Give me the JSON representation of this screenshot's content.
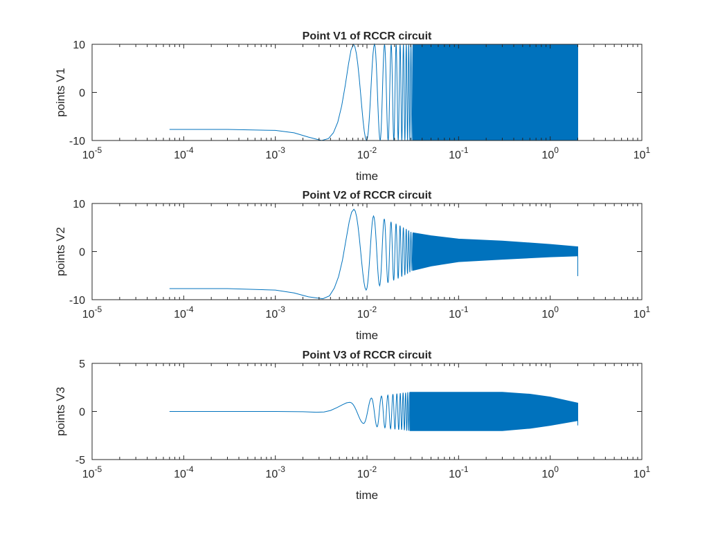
{
  "colors": {
    "series": "#0072BD",
    "axis": "#262626",
    "background": "#ffffff"
  },
  "chart_data": [
    {
      "type": "line",
      "title": "Point V1 of RCCR circuit",
      "xlabel": "time",
      "ylabel": "points V1",
      "xscale": "log",
      "xlim": [
        1e-05,
        10
      ],
      "ylim": [
        -10,
        10
      ],
      "xticks": [
        {
          "base": "10",
          "exp": "-5"
        },
        {
          "base": "10",
          "exp": "-4"
        },
        {
          "base": "10",
          "exp": "-3"
        },
        {
          "base": "10",
          "exp": "-2"
        },
        {
          "base": "10",
          "exp": "-1"
        },
        {
          "base": "10",
          "exp": "0"
        },
        {
          "base": "10",
          "exp": "1"
        }
      ],
      "yticks": [
        "-10",
        "0",
        "10"
      ],
      "yticks_values": [
        -10,
        0,
        10
      ],
      "grid": false,
      "lead": [
        [
          7e-05,
          -7.7
        ],
        [
          0.0003,
          -7.7
        ],
        [
          0.001,
          -7.9
        ],
        [
          0.0016,
          -8.4
        ],
        [
          0.0023,
          -9.3
        ],
        [
          0.0032,
          -10
        ],
        [
          0.0038,
          -9.6
        ],
        [
          0.0043,
          -8.4
        ],
        [
          0.0048,
          -6.2
        ],
        [
          0.0053,
          -2.8
        ],
        [
          0.0058,
          1.5
        ],
        [
          0.0063,
          6
        ],
        [
          0.0067,
          8.8
        ],
        [
          0.0071,
          10
        ]
      ],
      "extrema_x": [
        0.00991,
        0.01209,
        0.01393,
        0.01556,
        0.01703,
        0.01838,
        0.01964,
        0.02082,
        0.02194,
        0.02301,
        0.02402,
        0.025,
        0.02594,
        0.02685,
        0.02773,
        0.02858,
        0.0294,
        0.03021,
        0.03099,
        0.03175
      ],
      "extrema_y": [
        -10,
        10,
        -10,
        10,
        -10,
        10,
        -10,
        10,
        -10,
        10,
        -10,
        10,
        -10,
        10,
        -10,
        10,
        -10,
        10,
        -10,
        10
      ],
      "envelope": [
        [
          0.0318,
          10,
          -10
        ],
        [
          2,
          10,
          -10
        ]
      ],
      "end_value": null
    },
    {
      "type": "line",
      "title": "Point V2 of RCCR circuit",
      "xlabel": "time",
      "ylabel": "points V2",
      "xscale": "log",
      "xlim": [
        1e-05,
        10
      ],
      "ylim": [
        -10,
        10
      ],
      "xticks": [
        {
          "base": "10",
          "exp": "-5"
        },
        {
          "base": "10",
          "exp": "-4"
        },
        {
          "base": "10",
          "exp": "-3"
        },
        {
          "base": "10",
          "exp": "-2"
        },
        {
          "base": "10",
          "exp": "-1"
        },
        {
          "base": "10",
          "exp": "0"
        },
        {
          "base": "10",
          "exp": "1"
        }
      ],
      "yticks": [
        "-10",
        "0",
        "10"
      ],
      "yticks_values": [
        -10,
        0,
        10
      ],
      "grid": false,
      "lead": [
        [
          7e-05,
          -7.7
        ],
        [
          0.0003,
          -7.7
        ],
        [
          0.001,
          -8.0
        ],
        [
          0.0016,
          -8.6
        ],
        [
          0.0023,
          -9.4
        ],
        [
          0.0033,
          -9.8
        ],
        [
          0.0039,
          -9.2
        ],
        [
          0.0044,
          -7.6
        ],
        [
          0.0049,
          -5.2
        ],
        [
          0.0054,
          -1.8
        ],
        [
          0.0059,
          2.4
        ],
        [
          0.0064,
          6.2
        ],
        [
          0.0068,
          8.2
        ],
        [
          0.0072,
          8.8
        ]
      ],
      "extrema_x": [
        0.0098,
        0.0118,
        0.01375,
        0.01545,
        0.01695,
        0.0183,
        0.01958,
        0.02077,
        0.0219,
        0.02297,
        0.02399,
        0.02497,
        0.02591,
        0.02682,
        0.0277,
        0.02855,
        0.02938,
        0.03019,
        0.03097,
        0.03173
      ],
      "extrema_y": [
        -8,
        7.4,
        -7.1,
        6.8,
        -6.5,
        6.2,
        -6.0,
        5.8,
        -5.6,
        5.4,
        -5.2,
        5.0,
        -4.9,
        4.7,
        -4.6,
        4.4,
        -4.3,
        4.1,
        -4.0,
        3.9
      ],
      "envelope": [
        [
          0.0318,
          3.9,
          -3.9
        ],
        [
          0.05,
          3.3,
          -3.0
        ],
        [
          0.1,
          2.6,
          -2.1
        ],
        [
          0.3,
          2.2,
          -1.6
        ],
        [
          1,
          1.5,
          -1.1
        ],
        [
          2,
          1.0,
          -0.9
        ]
      ],
      "end_value": -5.1
    },
    {
      "type": "line",
      "title": "Point V3 of RCCR circuit",
      "xlabel": "time",
      "ylabel": "points V3",
      "xscale": "log",
      "xlim": [
        1e-05,
        10
      ],
      "ylim": [
        -5,
        5
      ],
      "xticks": [
        {
          "base": "10",
          "exp": "-5"
        },
        {
          "base": "10",
          "exp": "-4"
        },
        {
          "base": "10",
          "exp": "-3"
        },
        {
          "base": "10",
          "exp": "-2"
        },
        {
          "base": "10",
          "exp": "-1"
        },
        {
          "base": "10",
          "exp": "0"
        },
        {
          "base": "10",
          "exp": "1"
        }
      ],
      "yticks": [
        "-5",
        "0",
        "5"
      ],
      "yticks_values": [
        -5,
        0,
        5
      ],
      "grid": false,
      "lead": [
        [
          7e-05,
          0
        ],
        [
          0.001,
          0
        ],
        [
          0.002,
          -0.03
        ],
        [
          0.0028,
          -0.08
        ],
        [
          0.0034,
          -0.05
        ],
        [
          0.004,
          0.1
        ],
        [
          0.0047,
          0.4
        ],
        [
          0.0054,
          0.7
        ],
        [
          0.006,
          0.9
        ],
        [
          0.0065,
          0.95
        ]
      ],
      "extrema_x": [
        0.0092,
        0.0112,
        0.0129,
        0.0144,
        0.0157,
        0.0169,
        0.0181,
        0.0192,
        0.0202,
        0.0212,
        0.0222,
        0.0231,
        0.0239,
        0.0248,
        0.0256,
        0.0264,
        0.0272,
        0.0279,
        0.0286,
        0.0293
      ],
      "extrema_y": [
        -1.25,
        1.4,
        -1.6,
        1.6,
        -1.7,
        1.7,
        -1.8,
        1.8,
        -1.85,
        1.85,
        -1.9,
        1.9,
        -1.9,
        1.95,
        -1.95,
        1.95,
        -2,
        2,
        -2,
        2
      ],
      "envelope": [
        [
          0.0295,
          2.0,
          -2.0
        ],
        [
          0.3,
          2.0,
          -2.0
        ],
        [
          0.6,
          1.8,
          -1.75
        ],
        [
          1,
          1.5,
          -1.45
        ],
        [
          2,
          0.87,
          -0.95
        ]
      ],
      "end_value": -1.45
    }
  ]
}
